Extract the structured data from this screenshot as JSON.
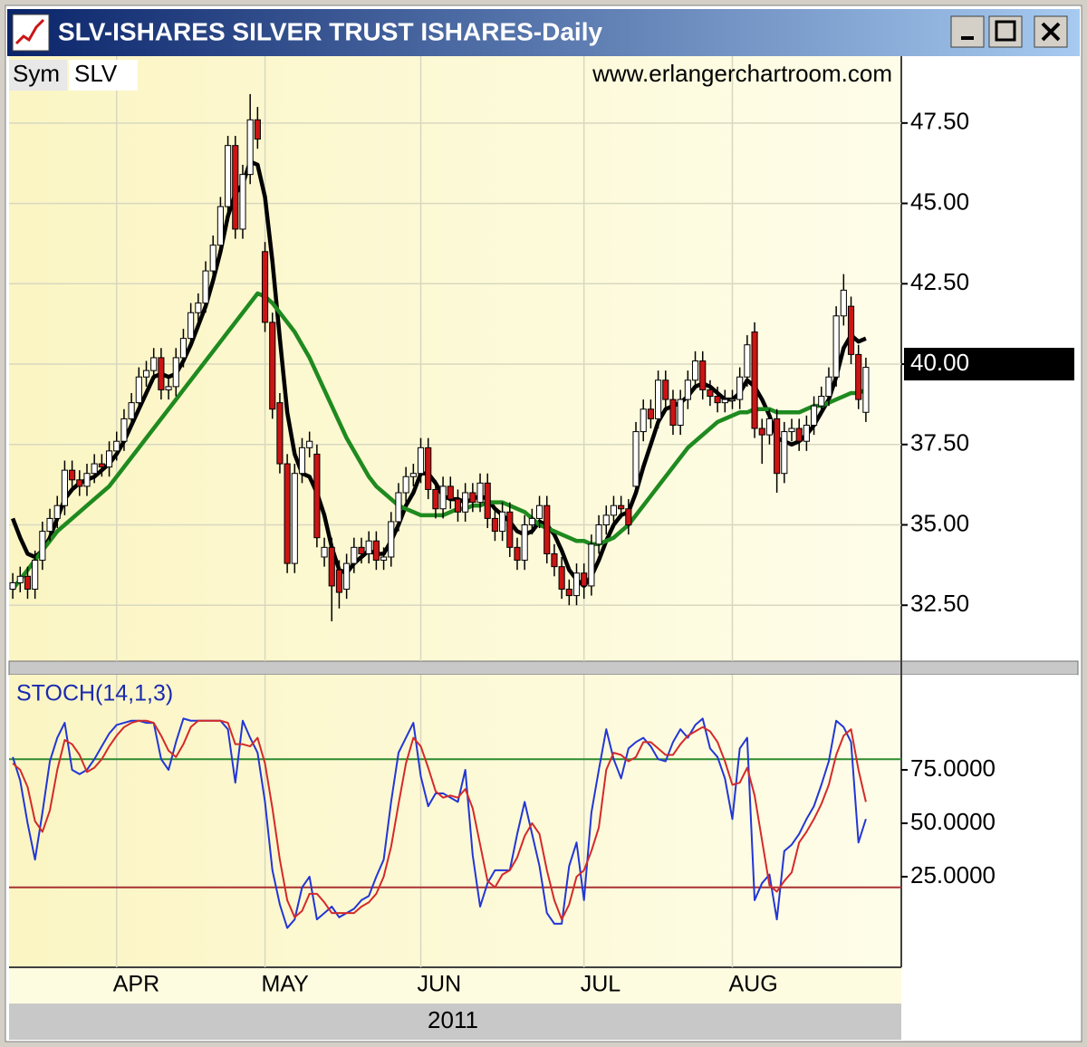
{
  "window": {
    "title": "SLV-ISHARES SILVER TRUST ISHARES-Daily"
  },
  "chart_data": [
    {
      "type": "candlestick",
      "symbol_label": "Sym",
      "symbol": "SLV",
      "watermark": "www.erlangerchartroom.com",
      "year_label": "2011",
      "categories": [
        null,
        null,
        null,
        null,
        null,
        null,
        null,
        null,
        null,
        null,
        null,
        null,
        null,
        null,
        "APR",
        null,
        null,
        null,
        null,
        null,
        null,
        null,
        null,
        null,
        null,
        null,
        null,
        null,
        null,
        null,
        null,
        null,
        null,
        null,
        "MAY",
        null,
        null,
        null,
        null,
        null,
        null,
        null,
        null,
        null,
        null,
        null,
        null,
        null,
        null,
        null,
        null,
        null,
        null,
        null,
        null,
        "JUN",
        null,
        null,
        null,
        null,
        null,
        null,
        null,
        null,
        null,
        null,
        null,
        null,
        null,
        null,
        null,
        null,
        null,
        null,
        null,
        null,
        null,
        "JUL",
        null,
        null,
        null,
        null,
        null,
        null,
        null,
        null,
        null,
        null,
        null,
        null,
        null,
        null,
        null,
        null,
        null,
        null,
        null,
        "AUG",
        null,
        null,
        null,
        null,
        null,
        null,
        null,
        null,
        null,
        null,
        null,
        null,
        null,
        null,
        null,
        null,
        null,
        null
      ],
      "open": [
        33.0,
        33.2,
        33.4,
        33.0,
        33.9,
        34.8,
        35.2,
        35.6,
        36.7,
        36.4,
        36.2,
        36.6,
        36.9,
        36.8,
        37.3,
        37.6,
        38.3,
        38.8,
        39.6,
        39.8,
        40.2,
        39.2,
        39.3,
        40.2,
        40.8,
        41.6,
        41.9,
        42.9,
        43.7,
        44.9,
        46.8,
        44.2,
        45.9,
        47.6,
        43.5,
        41.3,
        38.8,
        36.9,
        33.8,
        36.6,
        37.4,
        37.2,
        34.0,
        34.3,
        33.6,
        33.0,
        33.8,
        34.3,
        34.1,
        34.5,
        33.9,
        34.0,
        35.1,
        36.0,
        36.5,
        36.6,
        37.4,
        36.1,
        35.5,
        36.2,
        35.8,
        35.4,
        36.0,
        35.7,
        36.3,
        35.2,
        34.8,
        35.4,
        34.3,
        33.9,
        35.0,
        35.2,
        35.6,
        34.1,
        33.7,
        33.0,
        32.8,
        33.5,
        33.1,
        34.4,
        35.0,
        35.3,
        35.6,
        35.5,
        36.2,
        37.9,
        38.6,
        38.3,
        39.5,
        38.9,
        38.1,
        38.9,
        39.5,
        40.1,
        39.2,
        39.0,
        38.8,
        38.9,
        38.9,
        39.6,
        41.0,
        38.0,
        37.8,
        38.3,
        36.6,
        37.9,
        38.0,
        37.6,
        38.1,
        38.7,
        39.0,
        39.6,
        41.5,
        41.8,
        40.3,
        38.5
      ],
      "high": [
        33.5,
        33.7,
        33.7,
        34.2,
        35.1,
        35.5,
        35.9,
        37.0,
        37.0,
        36.7,
        36.9,
        37.2,
        37.2,
        37.6,
        37.9,
        38.6,
        39.1,
        39.9,
        40.1,
        40.5,
        40.5,
        39.6,
        40.5,
        41.1,
        41.9,
        42.2,
        43.2,
        44.0,
        45.2,
        47.1,
        47.1,
        46.2,
        48.4,
        48.0,
        43.8,
        41.6,
        39.1,
        37.2,
        36.9,
        37.7,
        37.9,
        37.5,
        34.6,
        34.6,
        33.9,
        34.1,
        34.6,
        34.6,
        34.8,
        34.8,
        34.3,
        35.4,
        36.3,
        36.8,
        36.9,
        37.7,
        37.7,
        36.4,
        36.5,
        36.5,
        36.1,
        36.3,
        36.3,
        36.6,
        36.6,
        35.5,
        35.7,
        35.7,
        34.6,
        35.3,
        35.5,
        35.9,
        35.9,
        34.4,
        34.0,
        33.3,
        33.8,
        33.8,
        34.7,
        35.3,
        35.6,
        35.9,
        35.9,
        35.8,
        38.2,
        38.9,
        38.9,
        39.8,
        39.8,
        39.2,
        39.2,
        39.8,
        40.4,
        40.4,
        39.5,
        39.3,
        39.2,
        39.2,
        39.9,
        40.9,
        41.3,
        38.3,
        38.6,
        38.6,
        38.2,
        38.3,
        38.3,
        38.4,
        39.0,
        39.3,
        39.9,
        41.8,
        42.8,
        42.1,
        40.6,
        40.2
      ],
      "low": [
        32.7,
        32.9,
        32.7,
        32.7,
        33.6,
        34.5,
        34.9,
        35.3,
        36.1,
        35.9,
        35.9,
        36.3,
        36.5,
        36.5,
        37.0,
        37.3,
        38.0,
        38.5,
        39.3,
        39.5,
        38.9,
        38.9,
        39.0,
        39.9,
        40.5,
        41.3,
        41.6,
        42.6,
        43.4,
        44.6,
        43.9,
        43.9,
        45.6,
        46.7,
        41.0,
        38.3,
        36.6,
        33.5,
        33.5,
        36.3,
        37.1,
        34.3,
        33.7,
        32.0,
        32.4,
        32.7,
        33.5,
        33.8,
        33.8,
        33.6,
        33.6,
        33.7,
        34.8,
        35.7,
        36.2,
        36.3,
        35.8,
        35.2,
        35.2,
        35.5,
        35.1,
        35.1,
        35.4,
        35.4,
        34.9,
        34.5,
        34.5,
        34.0,
        33.6,
        33.6,
        34.7,
        34.9,
        33.8,
        33.4,
        32.7,
        32.5,
        32.5,
        32.7,
        32.8,
        34.1,
        34.7,
        35.0,
        35.2,
        34.7,
        35.9,
        37.6,
        38.0,
        38.0,
        38.6,
        37.8,
        37.8,
        38.6,
        39.2,
        38.9,
        38.7,
        38.5,
        38.5,
        38.6,
        38.6,
        39.3,
        37.7,
        36.9,
        37.5,
        36.0,
        36.3,
        37.6,
        37.3,
        37.3,
        37.8,
        38.4,
        38.7,
        39.3,
        41.2,
        40.0,
        38.6,
        38.2
      ],
      "close": [
        33.2,
        33.4,
        33.0,
        33.9,
        34.8,
        35.2,
        35.6,
        36.7,
        36.4,
        36.2,
        36.6,
        36.9,
        36.8,
        37.3,
        37.6,
        38.3,
        38.8,
        39.6,
        39.8,
        40.2,
        39.2,
        39.3,
        40.2,
        40.8,
        41.6,
        41.9,
        42.9,
        43.7,
        44.9,
        46.8,
        44.2,
        45.9,
        47.6,
        47.0,
        41.3,
        38.6,
        36.9,
        33.8,
        36.6,
        37.4,
        37.6,
        34.6,
        34.3,
        33.1,
        32.9,
        33.8,
        34.3,
        34.1,
        34.5,
        33.9,
        34.0,
        35.1,
        36.0,
        36.5,
        36.6,
        37.4,
        36.1,
        35.5,
        36.2,
        35.8,
        35.4,
        36.0,
        35.7,
        36.3,
        35.2,
        34.8,
        35.4,
        34.3,
        33.9,
        35.0,
        35.2,
        35.6,
        34.1,
        33.7,
        33.0,
        32.8,
        33.5,
        33.1,
        34.4,
        35.0,
        35.3,
        35.6,
        35.5,
        35.0,
        37.9,
        38.6,
        38.3,
        39.5,
        38.9,
        38.1,
        38.9,
        39.5,
        40.1,
        39.2,
        39.0,
        38.8,
        38.9,
        38.9,
        39.6,
        40.6,
        38.0,
        37.8,
        38.3,
        36.6,
        37.9,
        38.0,
        37.6,
        38.1,
        38.7,
        39.0,
        39.6,
        41.5,
        42.3,
        40.3,
        38.9,
        39.9
      ],
      "up_color": "#ffffff",
      "down_color": "#cc1414",
      "series": [
        {
          "color": "#000000",
          "values": [
            35.2,
            34.6,
            34.1,
            34.0,
            34.2,
            34.6,
            35.2,
            35.8,
            36.1,
            36.3,
            36.4,
            36.5,
            36.7,
            36.9,
            37.2,
            37.6,
            38.1,
            38.6,
            39.1,
            39.6,
            39.7,
            39.6,
            39.7,
            40.1,
            40.6,
            41.2,
            41.8,
            42.6,
            43.5,
            44.6,
            45.3,
            45.6,
            46.3,
            46.2,
            45.2,
            43.2,
            40.8,
            38.5,
            37.2,
            36.6,
            36.5,
            36.0,
            35.3,
            34.3,
            33.6,
            33.5,
            33.8,
            34.0,
            34.2,
            34.1,
            34.1,
            34.5,
            35.0,
            35.6,
            36.0,
            36.6,
            36.6,
            36.3,
            35.9,
            35.8,
            35.8,
            35.7,
            35.8,
            35.9,
            35.8,
            35.5,
            35.3,
            35.1,
            34.8,
            34.7,
            34.8,
            35.1,
            35.0,
            34.7,
            34.2,
            33.6,
            33.3,
            33.1,
            33.4,
            33.9,
            34.5,
            35.0,
            35.3,
            35.4,
            36.0,
            36.8,
            37.5,
            38.2,
            38.6,
            38.7,
            38.8,
            39.0,
            39.3,
            39.4,
            39.3,
            39.1,
            38.9,
            38.9,
            39.1,
            39.5,
            39.3,
            38.9,
            38.4,
            37.7,
            37.6,
            37.5,
            37.6,
            37.8,
            38.1,
            38.5,
            38.9,
            39.6,
            40.5,
            40.9,
            40.7,
            40.8
          ]
        },
        {
          "color": "#1f8a1f",
          "values": [
            33.0,
            33.3,
            33.6,
            33.9,
            34.2,
            34.5,
            34.8,
            35.0,
            35.2,
            35.4,
            35.6,
            35.8,
            36.0,
            36.2,
            36.5,
            36.8,
            37.1,
            37.4,
            37.7,
            38.0,
            38.3,
            38.6,
            38.9,
            39.2,
            39.5,
            39.8,
            40.1,
            40.4,
            40.7,
            41.0,
            41.3,
            41.6,
            41.9,
            42.2,
            42.1,
            41.9,
            41.6,
            41.3,
            41.0,
            40.6,
            40.2,
            39.7,
            39.2,
            38.7,
            38.2,
            37.7,
            37.3,
            36.9,
            36.5,
            36.2,
            36.0,
            35.8,
            35.6,
            35.5,
            35.4,
            35.3,
            35.3,
            35.3,
            35.3,
            35.4,
            35.5,
            35.5,
            35.6,
            35.6,
            35.7,
            35.7,
            35.7,
            35.6,
            35.5,
            35.4,
            35.2,
            35.0,
            34.9,
            34.8,
            34.7,
            34.6,
            34.5,
            34.5,
            34.4,
            34.4,
            34.5,
            34.6,
            34.8,
            35.0,
            35.3,
            35.6,
            35.9,
            36.2,
            36.5,
            36.8,
            37.1,
            37.4,
            37.6,
            37.8,
            38.0,
            38.2,
            38.3,
            38.4,
            38.5,
            38.5,
            38.6,
            38.6,
            38.6,
            38.5,
            38.5,
            38.5,
            38.5,
            38.6,
            38.7,
            38.7,
            38.8,
            38.9,
            39.0,
            39.1,
            39.1,
            39.2
          ]
        }
      ],
      "ylim": [
        30.76,
        49.58
      ],
      "yticks": [
        {
          "value": 32.5,
          "label": "32.50"
        },
        {
          "value": 35,
          "label": "35.00"
        },
        {
          "value": 37.5,
          "label": "37.50"
        },
        {
          "value": 40,
          "label": "40.00",
          "highlight": true
        },
        {
          "value": 42.5,
          "label": "42.50"
        },
        {
          "value": 45,
          "label": "45.00"
        },
        {
          "value": 47.5,
          "label": "47.50"
        }
      ],
      "grid": true
    },
    {
      "type": "line",
      "title": "STOCH(14,1,3)",
      "series": [
        {
          "color": "#2236d6",
          "values": [
            81,
            70,
            50,
            33,
            55,
            79,
            90,
            97,
            75,
            73,
            75,
            80,
            86,
            92,
            96,
            97,
            98,
            98,
            97,
            97,
            80,
            75,
            88,
            99,
            98,
            98,
            98,
            98,
            98,
            94,
            69,
            98,
            90,
            83,
            60,
            28,
            12,
            1,
            5,
            20,
            25,
            5,
            8,
            11,
            6,
            8,
            10,
            14,
            16,
            25,
            33,
            60,
            83,
            90,
            97,
            72,
            58,
            64,
            64,
            62,
            60,
            75,
            35,
            11,
            22,
            28,
            28,
            28,
            45,
            60,
            45,
            30,
            8,
            3,
            3,
            30,
            41,
            14,
            55,
            75,
            94,
            80,
            71,
            85,
            88,
            90,
            86,
            80,
            79,
            88,
            94,
            90,
            96,
            99,
            85,
            81,
            71,
            52,
            85,
            90,
            14,
            22,
            26,
            5,
            37,
            40,
            45,
            52,
            58,
            68,
            79,
            98,
            95,
            88,
            41,
            52
          ]
        },
        {
          "color": "#d42a2a",
          "values": [
            78,
            75,
            67,
            51,
            46,
            56,
            75,
            89,
            87,
            82,
            74,
            76,
            80,
            86,
            91,
            95,
            97,
            98,
            98,
            97,
            91,
            84,
            81,
            87,
            95,
            98,
            98,
            98,
            98,
            97,
            87,
            87,
            86,
            90,
            78,
            57,
            33,
            14,
            6,
            9,
            17,
            17,
            13,
            8,
            8,
            8,
            8,
            11,
            13,
            17,
            25,
            39,
            59,
            78,
            90,
            86,
            76,
            65,
            62,
            63,
            62,
            66,
            57,
            40,
            23,
            20,
            26,
            28,
            34,
            44,
            50,
            45,
            28,
            14,
            5,
            12,
            25,
            28,
            37,
            48,
            75,
            83,
            82,
            79,
            81,
            88,
            88,
            85,
            82,
            82,
            87,
            91,
            93,
            95,
            93,
            88,
            79,
            68,
            69,
            76,
            63,
            42,
            21,
            18,
            23,
            27,
            41,
            46,
            52,
            59,
            68,
            82,
            91,
            94,
            75,
            60
          ]
        }
      ],
      "levels": [
        {
          "value": 80,
          "color": "#2e8b2e"
        },
        {
          "value": 20,
          "color": "#a83232"
        }
      ],
      "ylim": [
        -17.4,
        119.5
      ],
      "yticks": [
        {
          "value": 25,
          "label": "25.0000"
        },
        {
          "value": 50,
          "label": "50.0000"
        },
        {
          "value": 75,
          "label": "75.0000"
        }
      ]
    }
  ]
}
